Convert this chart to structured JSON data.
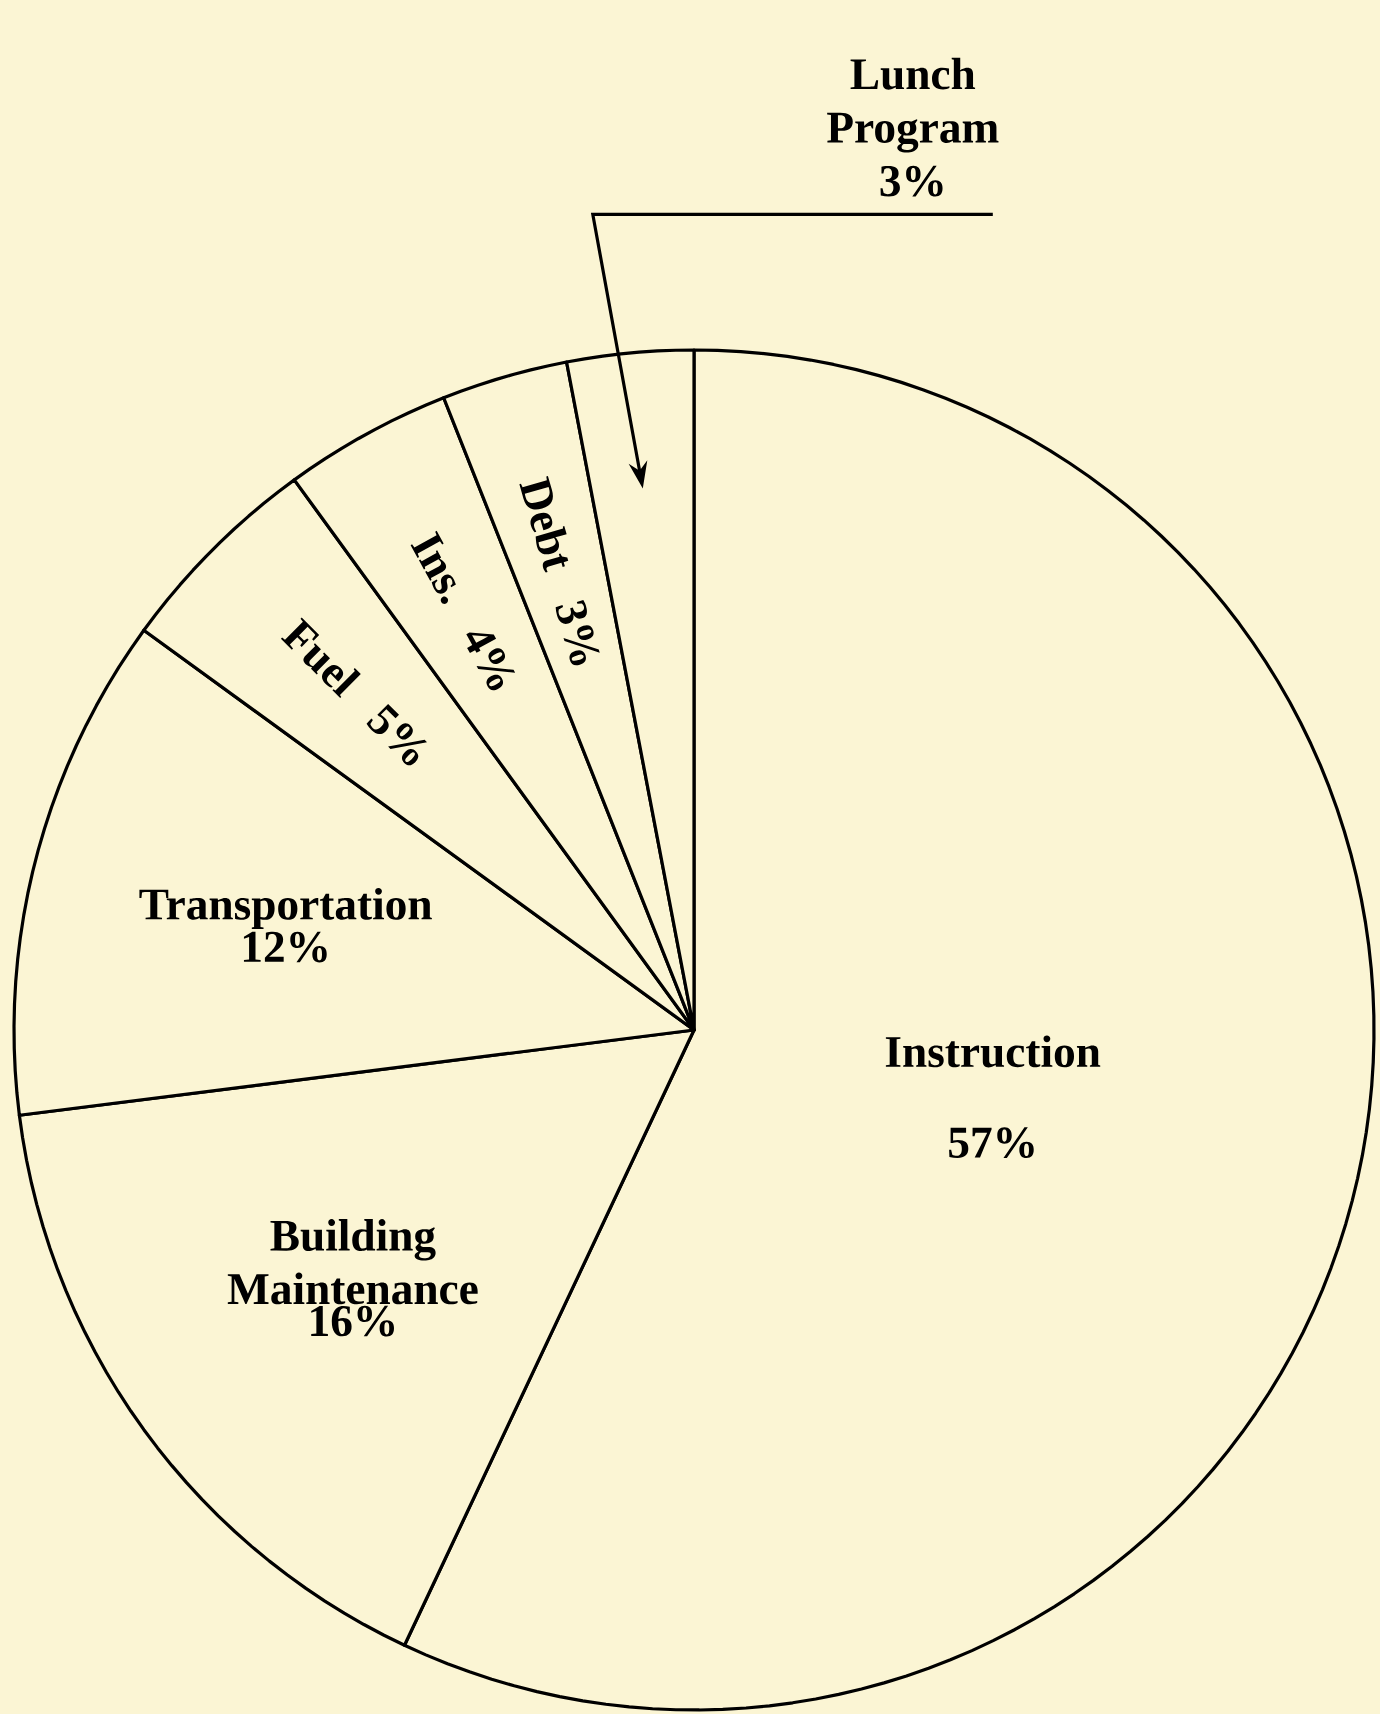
{
  "chart_data": {
    "type": "pie",
    "categories": [
      "Instruction",
      "Building Maintenance",
      "Transportation",
      "Fuel",
      "Ins.",
      "Debt",
      "Lunch Program"
    ],
    "values": [
      57,
      16,
      12,
      5,
      4,
      3,
      3
    ],
    "value_labels": [
      "57%",
      "16%",
      "12%",
      "5%",
      "4%",
      "3%",
      "3%"
    ],
    "colors": [
      "#fbf5d4",
      "#fbf5d4",
      "#fbf5d4",
      "#fbf5d4",
      "#fbf5d4",
      "#fbf5d4",
      "#fbf5d4"
    ],
    "legend": false
  }
}
